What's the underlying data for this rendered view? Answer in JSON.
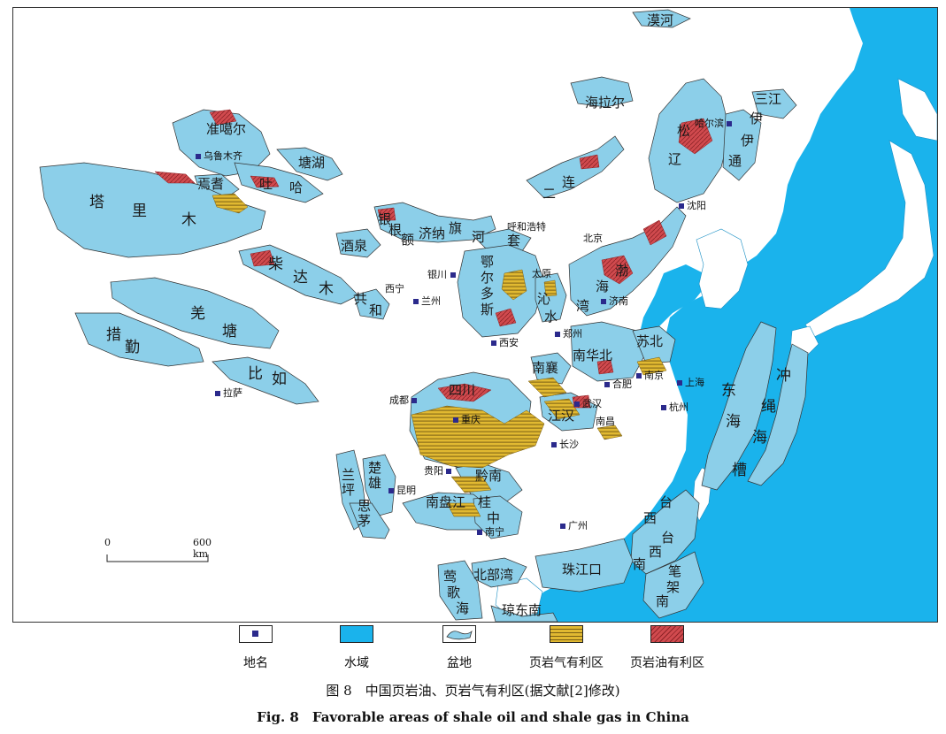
{
  "colors": {
    "water": "#1ab3ec",
    "basin": "#8ccfe9",
    "gas": "#e1b931",
    "oil": "#d04a4e",
    "city_marker": "#2b2a8c"
  },
  "basins": [
    {
      "id": "junggar",
      "chars": "准噶尔"
    },
    {
      "id": "tuha_t",
      "chars": "吐"
    },
    {
      "id": "tuha_h",
      "chars": "哈"
    },
    {
      "id": "santanghu",
      "chars": "塘湖"
    },
    {
      "id": "tarim_1",
      "chars": "塔"
    },
    {
      "id": "tarim_2",
      "chars": "里"
    },
    {
      "id": "tarim_3",
      "chars": "木"
    },
    {
      "id": "yanqi",
      "chars": "焉耆"
    },
    {
      "id": "qaidam_1",
      "chars": "柴"
    },
    {
      "id": "qaidam_2",
      "chars": "达"
    },
    {
      "id": "qaidam_3",
      "chars": "木"
    },
    {
      "id": "gonghe_1",
      "chars": "共"
    },
    {
      "id": "gonghe_2",
      "chars": "和"
    },
    {
      "id": "jiuquan",
      "chars": "酒泉"
    },
    {
      "id": "yingen_1",
      "chars": "银"
    },
    {
      "id": "yingen_2",
      "chars": "根"
    },
    {
      "id": "yingen_3",
      "chars": "额"
    },
    {
      "id": "jina_1",
      "chars": "济纳"
    },
    {
      "id": "jina_2",
      "chars": "旗"
    },
    {
      "id": "hetao_1",
      "chars": "河"
    },
    {
      "id": "hetao_2",
      "chars": "套"
    },
    {
      "id": "erdos_1",
      "chars": "鄂"
    },
    {
      "id": "erdos_2",
      "chars": "尔"
    },
    {
      "id": "erdos_3",
      "chars": "多"
    },
    {
      "id": "erdos_4",
      "chars": "斯"
    },
    {
      "id": "qinshui_1",
      "chars": "沁"
    },
    {
      "id": "qinshui_2",
      "chars": "水"
    },
    {
      "id": "bohai_1",
      "chars": "渤"
    },
    {
      "id": "bohai_2",
      "chars": "海"
    },
    {
      "id": "bohai_3",
      "chars": "湾"
    },
    {
      "id": "erlian_1",
      "chars": "二"
    },
    {
      "id": "erlian_2",
      "chars": "连"
    },
    {
      "id": "hailar",
      "chars": "海拉尔"
    },
    {
      "id": "mohe",
      "chars": "漠河"
    },
    {
      "id": "songliao_1",
      "chars": "松"
    },
    {
      "id": "songliao_2",
      "chars": "辽"
    },
    {
      "id": "sanjiang",
      "chars": "三江"
    },
    {
      "id": "yitong_1",
      "chars": "伊"
    },
    {
      "id": "yitong_2",
      "chars": "伊"
    },
    {
      "id": "yitong_3",
      "chars": "通"
    },
    {
      "id": "qiangtang_1",
      "chars": "羌"
    },
    {
      "id": "qiangtang_2",
      "chars": "塘"
    },
    {
      "id": "cuoqin_1",
      "chars": "措"
    },
    {
      "id": "cuoqin_2",
      "chars": "勤"
    },
    {
      "id": "biru_1",
      "chars": "比"
    },
    {
      "id": "biru_2",
      "chars": "如"
    },
    {
      "id": "sichuan",
      "chars": "四川"
    },
    {
      "id": "nanxiang",
      "chars": "南襄"
    },
    {
      "id": "jianghan",
      "chars": "江汉"
    },
    {
      "id": "nanhuabei",
      "chars": "南华北"
    },
    {
      "id": "subei",
      "chars": "苏北"
    },
    {
      "id": "qiannan",
      "chars": "黔南"
    },
    {
      "id": "nanpanjiang",
      "chars": "南盘江"
    },
    {
      "id": "guizhong_1",
      "chars": "桂"
    },
    {
      "id": "guizhong_2",
      "chars": "中"
    },
    {
      "id": "chuxiong",
      "chars": "楚雄"
    },
    {
      "id": "lanping",
      "chars": "兰坪"
    },
    {
      "id": "simao",
      "chars": "思茅"
    },
    {
      "id": "donghai_1",
      "chars": "东"
    },
    {
      "id": "donghai_2",
      "chars": "海"
    },
    {
      "id": "donghai_3",
      "chars": "槽"
    },
    {
      "id": "okinawa_1",
      "chars": "冲"
    },
    {
      "id": "okinawa_2",
      "chars": "绳"
    },
    {
      "id": "okinawa_3",
      "chars": "海"
    },
    {
      "id": "taixinan_1",
      "chars": "台"
    },
    {
      "id": "taixinan_2",
      "chars": "西"
    },
    {
      "id": "taixinan_3",
      "chars": "台"
    },
    {
      "id": "taixinan_4",
      "chars": "西"
    },
    {
      "id": "taixinan_5",
      "chars": "南"
    },
    {
      "id": "bijianan_1",
      "chars": "笔"
    },
    {
      "id": "bijianan_2",
      "chars": "架"
    },
    {
      "id": "bijianan_3",
      "chars": "南"
    },
    {
      "id": "zhujiangkou",
      "chars": "珠江口"
    },
    {
      "id": "beibuwan",
      "chars": "北部湾"
    },
    {
      "id": "yinggehai_1",
      "chars": "莺"
    },
    {
      "id": "yinggehai_2",
      "chars": "歌"
    },
    {
      "id": "yinggehai_3",
      "chars": "海"
    },
    {
      "id": "qiongdongnan",
      "chars": "琼东南"
    }
  ],
  "cities": [
    {
      "id": "urumqi",
      "name": "乌鲁木齐"
    },
    {
      "id": "harbin",
      "name": "哈尔滨"
    },
    {
      "id": "shenyang",
      "name": "沈阳"
    },
    {
      "id": "hohhot",
      "name": "呼和浩特"
    },
    {
      "id": "beijing",
      "name": "北京"
    },
    {
      "id": "yinchuan",
      "name": "银川"
    },
    {
      "id": "taiyuan",
      "name": "太原"
    },
    {
      "id": "jinan",
      "name": "济南"
    },
    {
      "id": "xining",
      "name": "西宁"
    },
    {
      "id": "lanzhou",
      "name": "兰州"
    },
    {
      "id": "xian",
      "name": "西安"
    },
    {
      "id": "zhengzhou",
      "name": "郑州"
    },
    {
      "id": "lhasa",
      "name": "拉萨"
    },
    {
      "id": "chengdu",
      "name": "成都"
    },
    {
      "id": "chongqing",
      "name": "重庆"
    },
    {
      "id": "wuhan",
      "name": "武汉"
    },
    {
      "id": "hefei",
      "name": "合肥"
    },
    {
      "id": "nanjing",
      "name": "南京"
    },
    {
      "id": "shanghai",
      "name": "上海"
    },
    {
      "id": "hangzhou",
      "name": "杭州"
    },
    {
      "id": "nanchang",
      "name": "南昌"
    },
    {
      "id": "changsha",
      "name": "长沙"
    },
    {
      "id": "guiyang",
      "name": "贵阳"
    },
    {
      "id": "kunming",
      "name": "昆明"
    },
    {
      "id": "nanning",
      "name": "南宁"
    },
    {
      "id": "guangzhou",
      "name": "广州"
    }
  ],
  "scale_bar": {
    "start_label": "0",
    "end_label": "600 km"
  },
  "legend": [
    {
      "key": "place",
      "label": "地名"
    },
    {
      "key": "water",
      "label": "水域"
    },
    {
      "key": "basin",
      "label": "盆地"
    },
    {
      "key": "gas",
      "label": "页岩气有利区"
    },
    {
      "key": "oil",
      "label": "页岩油有利区"
    }
  ],
  "caption_cn": "图 8　中国页岩油、页岩气有利区(据文献[2]修改)",
  "caption_en": "Fig. 8　Favorable areas of shale oil and shale gas in China"
}
